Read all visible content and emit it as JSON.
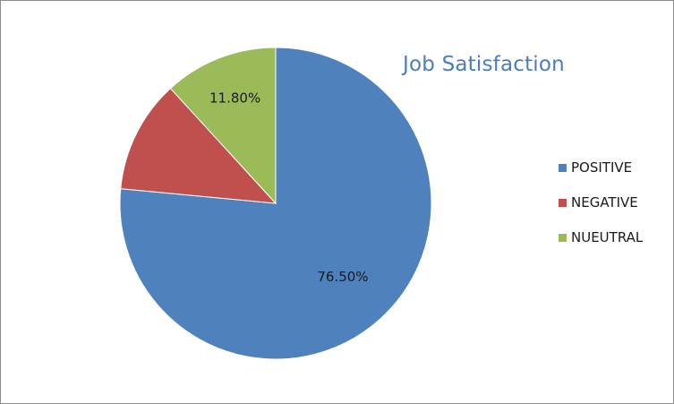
{
  "chart_data": {
    "type": "pie",
    "title": "Job Satisfaction",
    "slices": [
      {
        "name": "POSITIVE",
        "value": 76.5,
        "color": "#4f81bd",
        "label": "76.50%"
      },
      {
        "name": "NEGATIVE",
        "value": 11.7,
        "color": "#c0504d",
        "label": ""
      },
      {
        "name": "NUEUTRAL",
        "value": 11.8,
        "color": "#9bbb59",
        "label": "11.80%"
      }
    ],
    "start_angle_deg": 0,
    "direction": "clockwise",
    "legend_position": "right",
    "data_labels": [
      "76.50%",
      "11.80%"
    ]
  }
}
